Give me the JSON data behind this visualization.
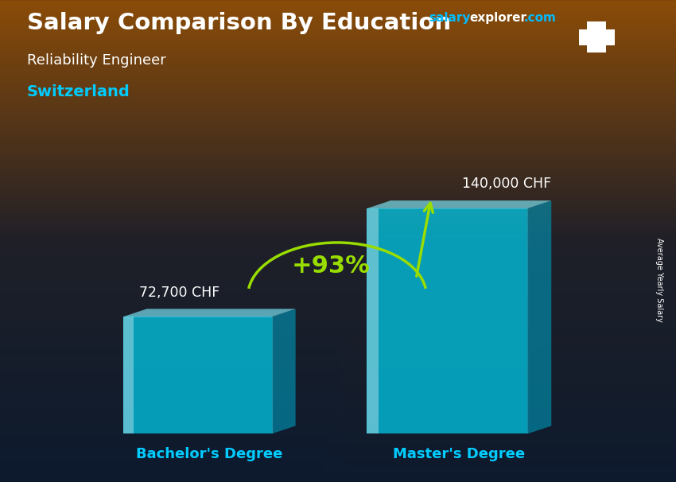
{
  "title_main": "Salary Comparison By Education",
  "website_salary": "salary",
  "website_explorer": "explorer.com",
  "subtitle": "Reliability Engineer",
  "country": "Switzerland",
  "categories": [
    "Bachelor's Degree",
    "Master's Degree"
  ],
  "values": [
    72700,
    140000
  ],
  "value_labels": [
    "72,700 CHF",
    "140,000 CHF"
  ],
  "pct_change": "+93%",
  "bar_color_face": "#00CFEE",
  "bar_color_side": "#0099BB",
  "bar_color_top": "#80EEFF",
  "bar_alpha": 0.72,
  "bg_top_color": "#0d1f35",
  "bg_mid_color": "#1a3550",
  "bg_bottom_left": "#1a2a40",
  "bg_bottom_right": "#5a3010",
  "title_color": "#FFFFFF",
  "subtitle_color": "#FFFFFF",
  "country_color": "#00CCFF",
  "label_color": "#FFFFFF",
  "xticklabel_color": "#00CCFF",
  "pct_color": "#99DD00",
  "arc_color": "#99DD00",
  "arrow_color": "#99DD00",
  "side_label": "Average Yearly Salary",
  "flag_red": "#D52B1E",
  "figsize": [
    8.5,
    6.06
  ],
  "dpi": 100
}
